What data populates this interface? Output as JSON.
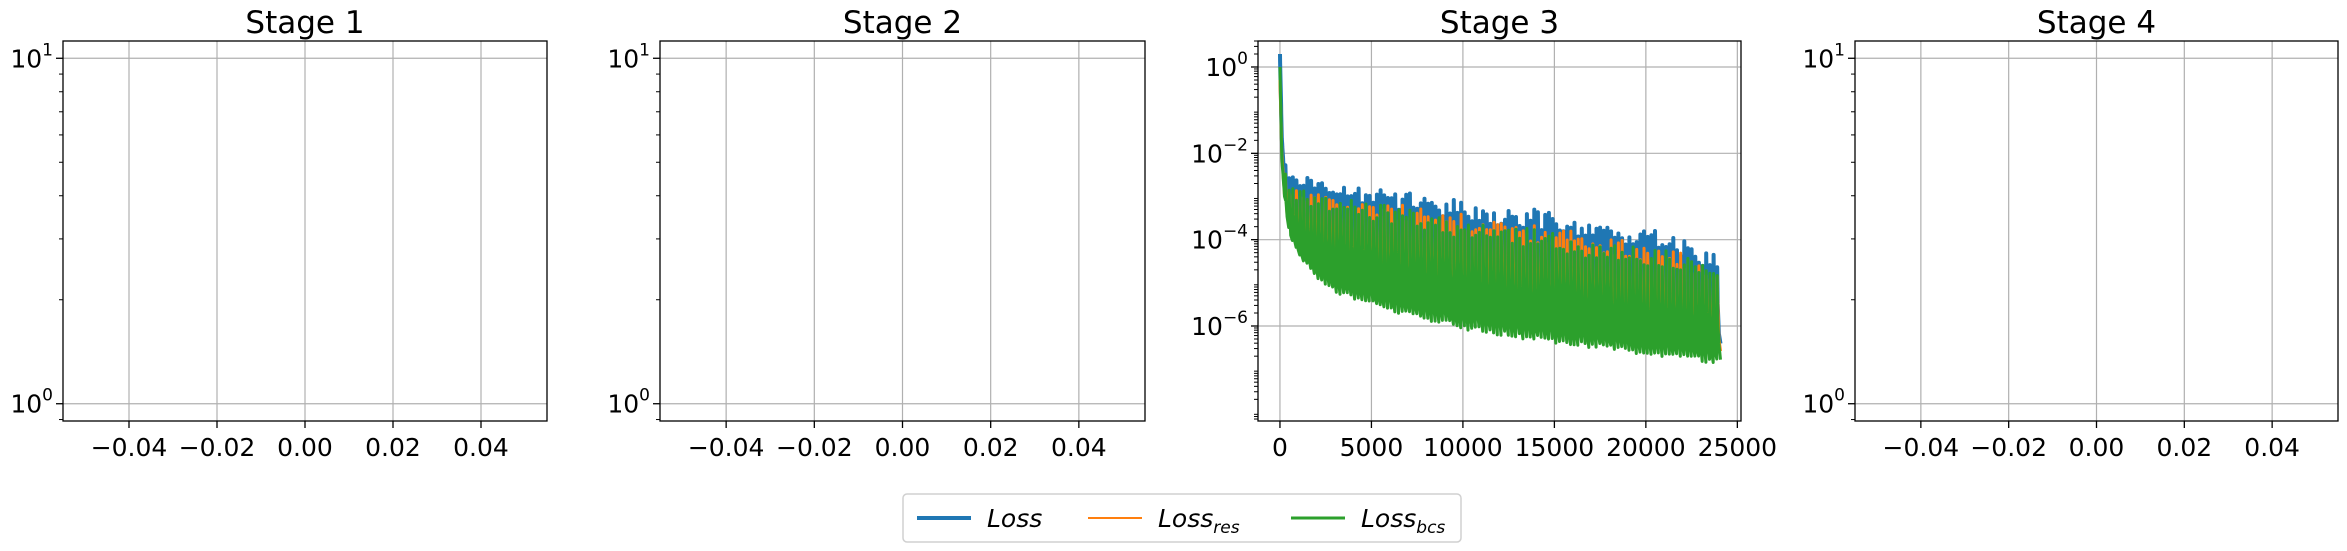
{
  "chart_data": [
    {
      "type": "line",
      "title": "Stage 1",
      "yscale": "log",
      "grid": true,
      "xlim": [
        -0.055,
        0.055
      ],
      "ylim": [
        0.8913,
        11.22
      ],
      "xticks": [
        -0.04,
        -0.02,
        0.0,
        0.02,
        0.04
      ],
      "xtick_labels": [
        "−0.04",
        "−0.02",
        "0.00",
        "0.02",
        "0.04"
      ],
      "yticks": [
        1,
        10
      ],
      "ytick_labels": [
        {
          "base": "10",
          "exp": "0"
        },
        {
          "base": "10",
          "exp": "1"
        }
      ],
      "series": []
    },
    {
      "type": "line",
      "title": "Stage 2",
      "yscale": "log",
      "grid": true,
      "xlim": [
        -0.055,
        0.055
      ],
      "ylim": [
        0.8913,
        11.22
      ],
      "xticks": [
        -0.04,
        -0.02,
        0.0,
        0.02,
        0.04
      ],
      "xtick_labels": [
        "−0.04",
        "−0.02",
        "0.00",
        "0.02",
        "0.04"
      ],
      "yticks": [
        1,
        10
      ],
      "ytick_labels": [
        {
          "base": "10",
          "exp": "0"
        },
        {
          "base": "10",
          "exp": "1"
        }
      ],
      "series": []
    },
    {
      "type": "line",
      "title": "Stage 3",
      "yscale": "log",
      "grid": true,
      "xlim": [
        -1200,
        25200
      ],
      "ylim": [
        6.3e-09,
        4.0
      ],
      "xticks": [
        0,
        5000,
        10000,
        15000,
        20000,
        25000
      ],
      "xtick_labels": [
        "0",
        "5000",
        "10000",
        "15000",
        "20000",
        "25000"
      ],
      "yticks": [
        1e-06,
        0.0001,
        0.01,
        1
      ],
      "ytick_labels": [
        {
          "base": "10",
          "exp": "−6"
        },
        {
          "base": "10",
          "exp": "−4"
        },
        {
          "base": "10",
          "exp": "−2"
        },
        {
          "base": "10",
          "exp": "0"
        }
      ],
      "series": [
        {
          "key": "loss",
          "color": "#1f77b4",
          "line_width": 4,
          "x": [
            0,
            100,
            250,
            500,
            1000,
            2000,
            3000,
            4000,
            5000,
            6000,
            7000,
            8000,
            9000,
            10000,
            11000,
            12000,
            13000,
            14000,
            15000,
            16000,
            17000,
            18000,
            19000,
            20000,
            21000,
            22000,
            23000,
            24000
          ],
          "upper": [
            2.0,
            0.05,
            0.01,
            0.004,
            0.003,
            0.003,
            0.002,
            0.0018,
            0.0015,
            0.0013,
            0.0012,
            0.001,
            0.0009,
            0.0008,
            0.0007,
            0.0006,
            0.0005,
            0.0005,
            0.0004,
            0.0003,
            0.0003,
            0.00025,
            0.0002,
            0.00018,
            0.00015,
            0.0001,
            6e-05,
            5e-05
          ],
          "lower": [
            2.0,
            0.01,
            0.0005,
            0.0002,
            0.0001,
            4e-05,
            2e-05,
            1.2e-05,
            8e-06,
            5.5e-06,
            4e-06,
            3e-06,
            2.5e-06,
            2e-06,
            1.7e-06,
            1.5e-06,
            1.2e-06,
            1e-06,
            9e-07,
            8e-07,
            7e-07,
            6e-07,
            5.5e-07,
            5e-07,
            4.5e-07,
            4e-07,
            3.5e-07,
            3e-07
          ]
        },
        {
          "key": "loss_res",
          "color": "#ff7f0e",
          "line_width": 3,
          "x": [
            0,
            100,
            250,
            500,
            1000,
            2000,
            3000,
            4000,
            5000,
            6000,
            7000,
            8000,
            9000,
            10000,
            11000,
            12000,
            13000,
            14000,
            15000,
            16000,
            17000,
            18000,
            19000,
            20000,
            21000,
            22000,
            23000,
            24000
          ],
          "upper": [
            0.5,
            0.02,
            0.004,
            0.002,
            0.0015,
            0.0014,
            0.001,
            0.0009,
            0.0008,
            0.0007,
            0.0006,
            0.0005,
            0.00045,
            0.0004,
            0.00035,
            0.0003,
            0.00025,
            0.00022,
            0.0002,
            0.00018,
            0.00015,
            0.00012,
            0.0001,
            8e-05,
            6e-05,
            5e-05,
            3e-05,
            2e-05
          ],
          "lower": [
            0.5,
            0.005,
            0.0003,
            0.0001,
            5e-05,
            2e-05,
            1e-05,
            7e-06,
            5e-06,
            3.5e-06,
            2.5e-06,
            2e-06,
            1.7e-06,
            1.4e-06,
            1.2e-06,
            1e-06,
            9e-07,
            8e-07,
            7e-07,
            6e-07,
            5.5e-07,
            5e-07,
            4.5e-07,
            4e-07,
            3.5e-07,
            3e-07,
            2.5e-07,
            2e-07
          ]
        },
        {
          "key": "loss_bcs",
          "color": "#2ca02c",
          "line_width": 3,
          "x": [
            0,
            100,
            250,
            500,
            1000,
            2000,
            3000,
            4000,
            5000,
            6000,
            7000,
            8000,
            9000,
            10000,
            11000,
            12000,
            13000,
            14000,
            15000,
            16000,
            17000,
            18000,
            19000,
            20000,
            21000,
            22000,
            23000,
            24000
          ],
          "upper": [
            1.0,
            0.03,
            0.005,
            0.002,
            0.0015,
            0.0012,
            0.001,
            0.0008,
            0.0007,
            0.0006,
            0.0005,
            0.0004,
            0.00035,
            0.0003,
            0.00028,
            0.00025,
            0.0002,
            0.00018,
            0.00015,
            0.00012,
            0.0001,
            9e-05,
            8e-05,
            7e-05,
            6e-05,
            5e-05,
            4e-05,
            3e-05
          ],
          "lower": [
            1.0,
            0.002,
            0.0002,
            8e-05,
            3e-05,
            1e-05,
            5e-06,
            3.5e-06,
            2.5e-06,
            1.8e-06,
            1.4e-06,
            1.1e-06,
            9e-07,
            7e-07,
            6e-07,
            5e-07,
            4.5e-07,
            4e-07,
            3.5e-07,
            3e-07,
            2.7e-07,
            2.4e-07,
            2.1e-07,
            1.8e-07,
            1.6e-07,
            1.5e-07,
            1.3e-07,
            1.2e-07
          ]
        }
      ]
    },
    {
      "type": "line",
      "title": "Stage 4",
      "yscale": "log",
      "grid": true,
      "xlim": [
        -0.055,
        0.055
      ],
      "ylim": [
        0.8913,
        11.22
      ],
      "xticks": [
        -0.04,
        -0.02,
        0.0,
        0.02,
        0.04
      ],
      "xtick_labels": [
        "−0.04",
        "−0.02",
        "0.00",
        "0.02",
        "0.04"
      ],
      "yticks": [
        1,
        10
      ],
      "ytick_labels": [
        {
          "base": "10",
          "exp": "0"
        },
        {
          "base": "10",
          "exp": "1"
        }
      ],
      "series": []
    }
  ],
  "legend": {
    "placement": "bottom-center",
    "entries": [
      {
        "base": "Loss",
        "sub": "",
        "color": "#1f77b4",
        "line_width": 4
      },
      {
        "base": "Loss",
        "sub": "res",
        "color": "#ff7f0e",
        "line_width": 2
      },
      {
        "base": "Loss",
        "sub": "bcs",
        "color": "#2ca02c",
        "line_width": 3
      }
    ]
  }
}
